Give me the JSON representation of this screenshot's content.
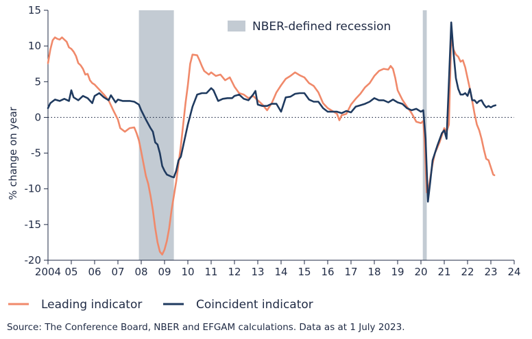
{
  "chart_data": {
    "type": "line",
    "xlabel": "",
    "ylabel": "% change on year",
    "ylim": [
      -20,
      15
    ],
    "xlim": [
      2004,
      2024
    ],
    "yticks": [
      15,
      10,
      5,
      0,
      -5,
      -10,
      -15,
      -20
    ],
    "xtick_values": [
      2004,
      2005,
      2006,
      2007,
      2008,
      2009,
      2010,
      2011,
      2012,
      2013,
      2014,
      2015,
      2016,
      2017,
      2018,
      2019,
      2020,
      2021,
      2022,
      2023,
      2024
    ],
    "xtick_labels": [
      "2004",
      "05",
      "06",
      "07",
      "08",
      "09",
      "10",
      "11",
      "12",
      "13",
      "14",
      "15",
      "16",
      "17",
      "18",
      "19",
      "20",
      "21",
      "22",
      "23",
      "24"
    ],
    "zero_line": "dotted",
    "recessions": [
      {
        "start": 2007.9,
        "end": 2009.4,
        "label": "NBER-defined recession"
      },
      {
        "start": 2020.08,
        "end": 2020.25,
        "label": "NBER-defined recession"
      }
    ],
    "recession_legend": "NBER-defined recession",
    "series": [
      {
        "name": "Leading indicator",
        "color": "#f0896a",
        "points": [
          [
            2004.0,
            7.6
          ],
          [
            2004.1,
            9.5
          ],
          [
            2004.2,
            10.8
          ],
          [
            2004.3,
            11.2
          ],
          [
            2004.4,
            11.0
          ],
          [
            2004.5,
            10.9
          ],
          [
            2004.6,
            11.2
          ],
          [
            2004.7,
            10.9
          ],
          [
            2004.8,
            10.6
          ],
          [
            2004.9,
            9.8
          ],
          [
            2005.0,
            9.6
          ],
          [
            2005.1,
            9.2
          ],
          [
            2005.2,
            8.6
          ],
          [
            2005.3,
            7.6
          ],
          [
            2005.4,
            7.3
          ],
          [
            2005.5,
            6.8
          ],
          [
            2005.6,
            6.0
          ],
          [
            2005.7,
            6.1
          ],
          [
            2005.8,
            5.2
          ],
          [
            2005.9,
            4.8
          ],
          [
            2006.0,
            4.6
          ],
          [
            2006.2,
            3.9
          ],
          [
            2006.4,
            3.2
          ],
          [
            2006.6,
            2.4
          ],
          [
            2006.8,
            1.0
          ],
          [
            2007.0,
            -0.3
          ],
          [
            2007.1,
            -1.5
          ],
          [
            2007.3,
            -2.0
          ],
          [
            2007.5,
            -1.5
          ],
          [
            2007.7,
            -1.4
          ],
          [
            2007.8,
            -2.2
          ],
          [
            2007.9,
            -3.2
          ],
          [
            2008.0,
            -4.8
          ],
          [
            2008.1,
            -6.5
          ],
          [
            2008.2,
            -8.2
          ],
          [
            2008.3,
            -9.3
          ],
          [
            2008.4,
            -11.0
          ],
          [
            2008.5,
            -13.0
          ],
          [
            2008.6,
            -15.5
          ],
          [
            2008.7,
            -17.5
          ],
          [
            2008.8,
            -18.8
          ],
          [
            2008.9,
            -19.2
          ],
          [
            2009.0,
            -18.5
          ],
          [
            2009.1,
            -17.3
          ],
          [
            2009.2,
            -15.5
          ],
          [
            2009.3,
            -13.0
          ],
          [
            2009.4,
            -11.0
          ],
          [
            2009.5,
            -9.0
          ],
          [
            2009.6,
            -6.5
          ],
          [
            2009.7,
            -4.0
          ],
          [
            2009.8,
            -1.0
          ],
          [
            2009.9,
            2.0
          ],
          [
            2010.0,
            4.5
          ],
          [
            2010.1,
            7.5
          ],
          [
            2010.2,
            8.8
          ],
          [
            2010.4,
            8.7
          ],
          [
            2010.5,
            8.0
          ],
          [
            2010.6,
            7.2
          ],
          [
            2010.7,
            6.5
          ],
          [
            2010.9,
            6.0
          ],
          [
            2011.0,
            6.3
          ],
          [
            2011.2,
            5.8
          ],
          [
            2011.4,
            6.0
          ],
          [
            2011.6,
            5.2
          ],
          [
            2011.8,
            5.6
          ],
          [
            2012.0,
            4.3
          ],
          [
            2012.2,
            3.4
          ],
          [
            2012.4,
            3.2
          ],
          [
            2012.6,
            2.7
          ],
          [
            2012.8,
            3.0
          ],
          [
            2013.0,
            2.4
          ],
          [
            2013.2,
            1.8
          ],
          [
            2013.4,
            1.0
          ],
          [
            2013.6,
            2.0
          ],
          [
            2013.8,
            3.5
          ],
          [
            2014.0,
            4.5
          ],
          [
            2014.2,
            5.4
          ],
          [
            2014.4,
            5.8
          ],
          [
            2014.6,
            6.3
          ],
          [
            2014.8,
            5.9
          ],
          [
            2015.0,
            5.6
          ],
          [
            2015.2,
            4.8
          ],
          [
            2015.4,
            4.4
          ],
          [
            2015.6,
            3.5
          ],
          [
            2015.8,
            2.0
          ],
          [
            2016.0,
            1.3
          ],
          [
            2016.2,
            0.9
          ],
          [
            2016.4,
            0.5
          ],
          [
            2016.5,
            -0.4
          ],
          [
            2016.6,
            0.3
          ],
          [
            2016.8,
            0.5
          ],
          [
            2017.0,
            1.8
          ],
          [
            2017.2,
            2.6
          ],
          [
            2017.4,
            3.3
          ],
          [
            2017.6,
            4.2
          ],
          [
            2017.8,
            4.8
          ],
          [
            2018.0,
            5.8
          ],
          [
            2018.2,
            6.5
          ],
          [
            2018.4,
            6.8
          ],
          [
            2018.6,
            6.7
          ],
          [
            2018.7,
            7.2
          ],
          [
            2018.8,
            6.8
          ],
          [
            2018.9,
            5.5
          ],
          [
            2019.0,
            3.8
          ],
          [
            2019.2,
            2.5
          ],
          [
            2019.4,
            1.5
          ],
          [
            2019.6,
            0.6
          ],
          [
            2019.8,
            -0.6
          ],
          [
            2020.0,
            -0.8
          ],
          [
            2020.1,
            -0.5
          ],
          [
            2020.15,
            -3.0
          ],
          [
            2020.25,
            -10.5
          ],
          [
            2020.35,
            -9.5
          ],
          [
            2020.5,
            -6.5
          ],
          [
            2020.6,
            -5.0
          ],
          [
            2020.8,
            -3.5
          ],
          [
            2021.0,
            -1.5
          ],
          [
            2021.1,
            -2.0
          ],
          [
            2021.2,
            -1.0
          ],
          [
            2021.3,
            11.2
          ],
          [
            2021.4,
            9.5
          ],
          [
            2021.5,
            8.8
          ],
          [
            2021.6,
            8.5
          ],
          [
            2021.7,
            7.8
          ],
          [
            2021.8,
            8.0
          ],
          [
            2021.9,
            7.0
          ],
          [
            2022.0,
            5.5
          ],
          [
            2022.1,
            4.0
          ],
          [
            2022.2,
            2.3
          ],
          [
            2022.3,
            0.5
          ],
          [
            2022.4,
            -1.0
          ],
          [
            2022.5,
            -1.8
          ],
          [
            2022.6,
            -3.0
          ],
          [
            2022.7,
            -4.5
          ],
          [
            2022.8,
            -5.8
          ],
          [
            2022.9,
            -6.0
          ],
          [
            2023.0,
            -7.0
          ],
          [
            2023.1,
            -8.0
          ],
          [
            2023.15,
            -8.1
          ]
        ]
      },
      {
        "name": "Coincident indicator",
        "color": "#1f3a5f",
        "points": [
          [
            2004.0,
            1.3
          ],
          [
            2004.1,
            2.0
          ],
          [
            2004.3,
            2.5
          ],
          [
            2004.5,
            2.3
          ],
          [
            2004.7,
            2.6
          ],
          [
            2004.9,
            2.3
          ],
          [
            2005.0,
            3.8
          ],
          [
            2005.1,
            2.8
          ],
          [
            2005.3,
            2.4
          ],
          [
            2005.5,
            3.0
          ],
          [
            2005.7,
            2.7
          ],
          [
            2005.9,
            2.0
          ],
          [
            2006.0,
            3.0
          ],
          [
            2006.2,
            3.4
          ],
          [
            2006.4,
            2.8
          ],
          [
            2006.6,
            2.4
          ],
          [
            2006.7,
            3.1
          ],
          [
            2006.9,
            2.1
          ],
          [
            2007.0,
            2.5
          ],
          [
            2007.2,
            2.3
          ],
          [
            2007.5,
            2.3
          ],
          [
            2007.7,
            2.2
          ],
          [
            2007.9,
            1.8
          ],
          [
            2008.0,
            1.0
          ],
          [
            2008.2,
            -0.3
          ],
          [
            2008.4,
            -1.5
          ],
          [
            2008.5,
            -2.0
          ],
          [
            2008.6,
            -3.5
          ],
          [
            2008.7,
            -3.8
          ],
          [
            2008.8,
            -5.0
          ],
          [
            2008.9,
            -6.8
          ],
          [
            2009.0,
            -7.5
          ],
          [
            2009.1,
            -8.0
          ],
          [
            2009.3,
            -8.3
          ],
          [
            2009.4,
            -8.4
          ],
          [
            2009.5,
            -7.5
          ],
          [
            2009.6,
            -6.0
          ],
          [
            2009.7,
            -5.5
          ],
          [
            2009.8,
            -4.0
          ],
          [
            2010.0,
            -1.0
          ],
          [
            2010.2,
            1.5
          ],
          [
            2010.4,
            3.2
          ],
          [
            2010.6,
            3.4
          ],
          [
            2010.8,
            3.4
          ],
          [
            2011.0,
            4.1
          ],
          [
            2011.1,
            3.8
          ],
          [
            2011.3,
            2.3
          ],
          [
            2011.5,
            2.6
          ],
          [
            2011.7,
            2.7
          ],
          [
            2011.9,
            2.7
          ],
          [
            2012.0,
            3.0
          ],
          [
            2012.2,
            3.2
          ],
          [
            2012.4,
            2.6
          ],
          [
            2012.6,
            2.4
          ],
          [
            2012.8,
            3.2
          ],
          [
            2012.9,
            3.7
          ],
          [
            2013.0,
            1.8
          ],
          [
            2013.2,
            1.6
          ],
          [
            2013.4,
            1.6
          ],
          [
            2013.6,
            1.9
          ],
          [
            2013.8,
            1.9
          ],
          [
            2014.0,
            0.8
          ],
          [
            2014.2,
            2.8
          ],
          [
            2014.4,
            2.9
          ],
          [
            2014.6,
            3.3
          ],
          [
            2014.8,
            3.4
          ],
          [
            2015.0,
            3.4
          ],
          [
            2015.2,
            2.5
          ],
          [
            2015.4,
            2.2
          ],
          [
            2015.6,
            2.2
          ],
          [
            2015.8,
            1.3
          ],
          [
            2016.0,
            0.8
          ],
          [
            2016.2,
            0.8
          ],
          [
            2016.4,
            0.8
          ],
          [
            2016.6,
            0.6
          ],
          [
            2016.8,
            0.9
          ],
          [
            2017.0,
            0.7
          ],
          [
            2017.2,
            1.5
          ],
          [
            2017.4,
            1.7
          ],
          [
            2017.6,
            1.9
          ],
          [
            2017.8,
            2.2
          ],
          [
            2018.0,
            2.7
          ],
          [
            2018.2,
            2.4
          ],
          [
            2018.4,
            2.4
          ],
          [
            2018.6,
            2.1
          ],
          [
            2018.8,
            2.5
          ],
          [
            2019.0,
            2.1
          ],
          [
            2019.2,
            1.9
          ],
          [
            2019.4,
            1.3
          ],
          [
            2019.6,
            1.0
          ],
          [
            2019.8,
            1.2
          ],
          [
            2020.0,
            0.8
          ],
          [
            2020.1,
            1.0
          ],
          [
            2020.2,
            -3.0
          ],
          [
            2020.3,
            -11.8
          ],
          [
            2020.4,
            -9.0
          ],
          [
            2020.5,
            -6.0
          ],
          [
            2020.7,
            -4.0
          ],
          [
            2020.9,
            -2.2
          ],
          [
            2021.0,
            -1.8
          ],
          [
            2021.1,
            -3.0
          ],
          [
            2021.2,
            5.0
          ],
          [
            2021.3,
            13.3
          ],
          [
            2021.4,
            9.0
          ],
          [
            2021.5,
            5.5
          ],
          [
            2021.6,
            4.0
          ],
          [
            2021.7,
            3.2
          ],
          [
            2021.8,
            3.2
          ],
          [
            2021.9,
            3.4
          ],
          [
            2022.0,
            3.0
          ],
          [
            2022.1,
            4.0
          ],
          [
            2022.2,
            2.4
          ],
          [
            2022.3,
            2.4
          ],
          [
            2022.4,
            2.0
          ],
          [
            2022.5,
            2.3
          ],
          [
            2022.6,
            2.4
          ],
          [
            2022.7,
            1.8
          ],
          [
            2022.8,
            1.4
          ],
          [
            2022.9,
            1.6
          ],
          [
            2023.0,
            1.4
          ],
          [
            2023.1,
            1.6
          ],
          [
            2023.2,
            1.7
          ]
        ]
      }
    ]
  },
  "source_text": "Source: The Conference Board, NBER and EFGAM calculations. Data as at 1 July 2023."
}
